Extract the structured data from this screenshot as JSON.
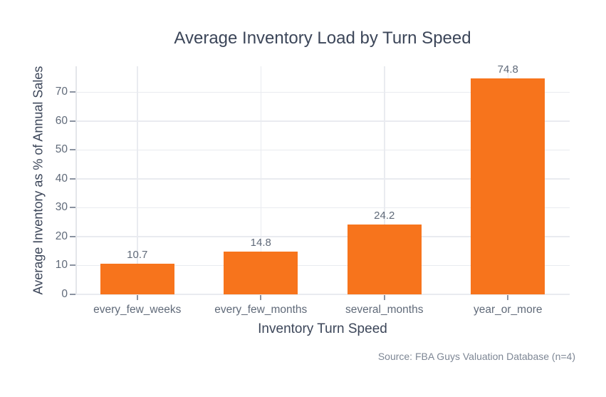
{
  "chart_data": {
    "type": "bar",
    "title": "Average Inventory Load by Turn Speed",
    "categories": [
      "every_few_weeks",
      "every_few_months",
      "several_months",
      "year_or_more"
    ],
    "values": [
      10.7,
      14.8,
      24.2,
      74.8
    ],
    "value_labels": [
      "10.7",
      "14.8",
      "24.2",
      "74.8"
    ],
    "xlabel": "Inventory Turn Speed",
    "ylabel": "Average Inventory as % of Annual Sales",
    "ylim": [
      0,
      79
    ],
    "yticks": [
      0,
      10,
      20,
      30,
      40,
      50,
      60,
      70
    ],
    "grid": "on",
    "legend": "none",
    "source_note": "Source: FBA Guys Valuation Database (n=4)",
    "colors": {
      "bar": "#f7741c",
      "title_text": "#3c4659",
      "tick_text": "#606a79",
      "source_text": "#7e8795",
      "gridline": "#e9ebf0",
      "axis_line": "#e4e6ea",
      "tick_mark": "#8b93a1",
      "background": "#ffffff"
    }
  }
}
